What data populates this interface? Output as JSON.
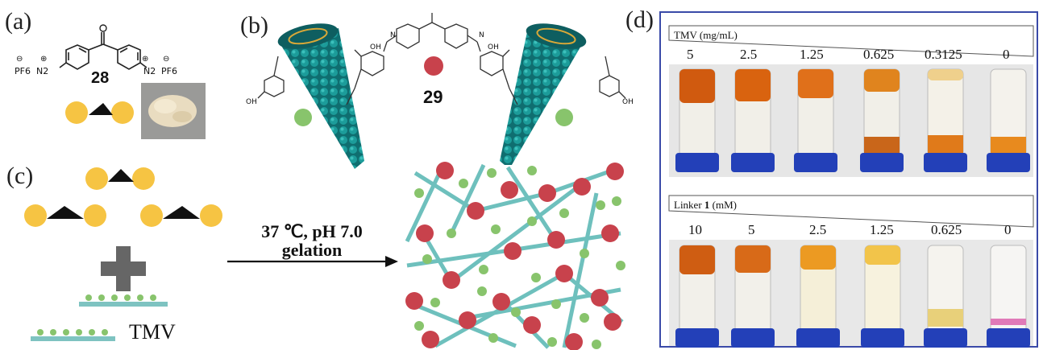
{
  "panels": {
    "a": {
      "label": "(a)",
      "compound_number": "28",
      "substituent_left": "N2",
      "substituent_right": "N2",
      "counterion_left": "PF6",
      "counterion_right": "PF6",
      "charge_plus": "⊕",
      "charge_minus": "⊖"
    },
    "b": {
      "label": "(b)",
      "compound_number": "29",
      "oh_label": "OH",
      "n_label": "N"
    },
    "c": {
      "label": "(c)",
      "conditions_line1": "37 ℃, pH 7.0",
      "conditions_line2": "gelation",
      "tmv_label": "TMV"
    },
    "d": {
      "label": "(d)",
      "row1": {
        "header": "TMV (mg/mL)",
        "values": [
          "5",
          "2.5",
          "1.25",
          "0.625",
          "0.3125",
          "0"
        ]
      },
      "row2": {
        "header_prefix": "Linker ",
        "header_bold": "1",
        "header_suffix": " (mM)",
        "values": [
          "10",
          "5",
          "2.5",
          "1.25",
          "0.625",
          "0"
        ]
      }
    }
  },
  "colors": {
    "yellow": "#f6c443",
    "red": "#c8424c",
    "green": "#88c46c",
    "teal": "#7ec3c1",
    "tmv_dark": "#157c7c",
    "cap_blue": "#2340b8",
    "frame_blue": "#3a4aa8"
  }
}
